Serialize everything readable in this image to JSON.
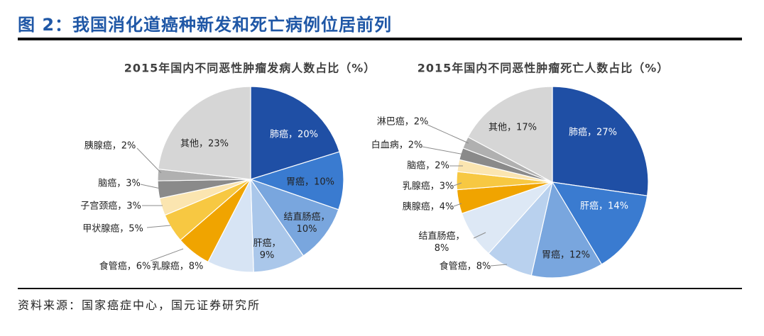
{
  "figure": {
    "title": "图 2：我国消化道癌种新发和死亡病例位居前列",
    "source": "资料来源：国家癌症中心，国元证券研究所"
  },
  "colors": {
    "title": "#1f57a6",
    "rule": "#111111",
    "label_text": "#222222",
    "label_text_on_dark": "#ffffff",
    "leader": "#8c8c8c",
    "slice_border": "#ffffff"
  },
  "chart_data": [
    {
      "type": "pie",
      "title": "2015年国内不同恶性肿瘤发病人数占比（%）",
      "categories": [
        "肺癌",
        "胃癌",
        "结直肠癌",
        "肝癌",
        "乳腺癌",
        "食管癌",
        "甲状腺癌",
        "子宫颈癌",
        "脑癌",
        "胰腺癌",
        "其他"
      ],
      "values": [
        20,
        10,
        10,
        9,
        8,
        6,
        5,
        3,
        3,
        2,
        23
      ],
      "label_separator": "，",
      "value_suffix": "%",
      "colors": [
        "#1f4fa5",
        "#3a7bd0",
        "#79a6de",
        "#aac7ea",
        "#d7e4f4",
        "#f0a400",
        "#f7c842",
        "#fbe5b0",
        "#8a8a8a",
        "#b0b0b0",
        "#d6d6d6"
      ]
    },
    {
      "type": "pie",
      "title": "2015年国内不同恶性肿瘤死亡人数占比（%）",
      "categories": [
        "肺癌",
        "肝癌",
        "胃癌",
        "食管癌",
        "结直肠癌",
        "胰腺癌",
        "乳腺癌",
        "脑癌",
        "白血病",
        "淋巴癌",
        "其他"
      ],
      "values": [
        27,
        14,
        12,
        8,
        8,
        4,
        3,
        2,
        2,
        2,
        17
      ],
      "label_separator": "，",
      "value_suffix": "%",
      "colors": [
        "#1f4fa5",
        "#3a7bd0",
        "#79a6de",
        "#b9d1ee",
        "#dde8f5",
        "#f0a400",
        "#f7c842",
        "#fbe5b0",
        "#8a8a8a",
        "#b0b0b0",
        "#d6d6d6"
      ]
    }
  ]
}
